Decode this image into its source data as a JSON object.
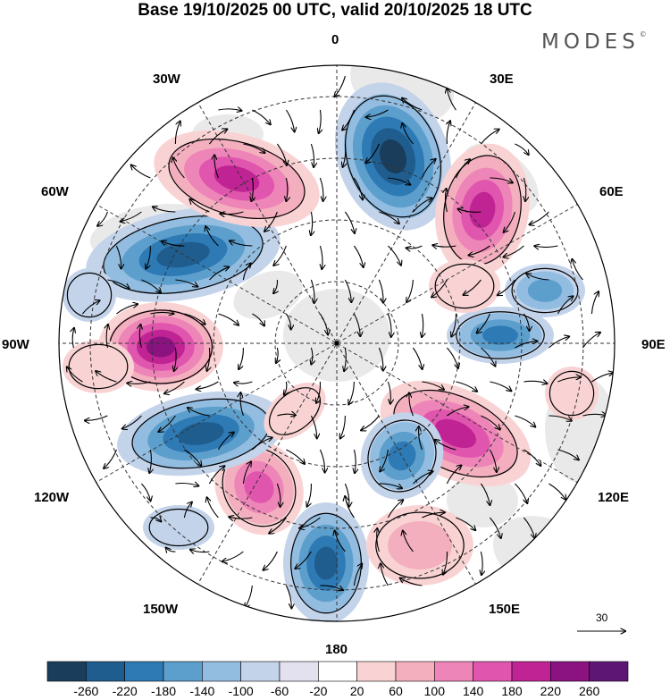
{
  "title": "Base 19/10/2025 00 UTC, valid 20/10/2025 18 UTC",
  "brand": "MODES",
  "brand_mark": "©",
  "longitude_labels": {
    "lon_0": "0",
    "lon_30e": "30E",
    "lon_60e": "60E",
    "lon_90e": "90E",
    "lon_120e": "120E",
    "lon_150e": "150E",
    "lon_180": "180",
    "lon_150w": "150W",
    "lon_120w": "120W",
    "lon_90w": "90W",
    "lon_60w": "60W",
    "lon_30w": "30W"
  },
  "reference_vector_label": "30",
  "colorbar": {
    "labels": [
      "-260",
      "-220",
      "-180",
      "-140",
      "-100",
      "-60",
      "-20",
      "20",
      "60",
      "100",
      "140",
      "180",
      "220",
      "260"
    ],
    "colors": [
      "#1b3d5c",
      "#1f5d8e",
      "#2e7ab5",
      "#5d9fcc",
      "#93bde0",
      "#c3d3ea",
      "#e3e1f0",
      "#ffffff",
      "#f9d3d4",
      "#f4afbf",
      "#ee85b8",
      "#e055ad",
      "#c02394",
      "#8a1381",
      "#5e1675"
    ]
  },
  "map_fill_colors": {
    "neg_1": "#c3d3ea",
    "neg_2": "#93bde0",
    "neg_3": "#5d9fcc",
    "neg_4": "#2e7ab5",
    "neg_5": "#1f5d8e",
    "neg_6": "#1b3d5c",
    "pos_1": "#f9d3d4",
    "pos_2": "#f4afbf",
    "pos_3": "#ee85b8",
    "pos_4": "#e055ad",
    "pos_5": "#c02394",
    "pos_6": "#8a1381",
    "land": "#e9e9e9"
  }
}
